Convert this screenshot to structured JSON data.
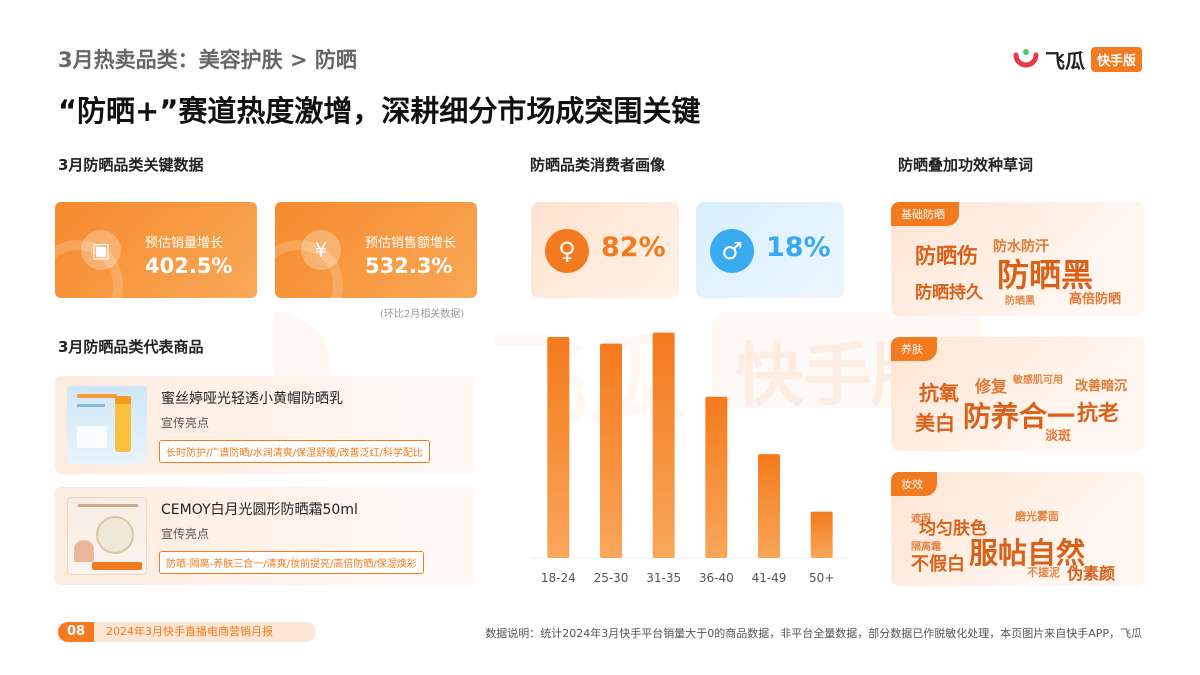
{
  "header": {
    "breadcrumb_part1": "3月热卖品类：美容护肤",
    "breadcrumb_sep": ">",
    "breadcrumb_part2": "防晒",
    "headline": "“防晒+”赛道热度激增，深耕细分市场成突围关键"
  },
  "logo": {
    "name": "飞瓜",
    "tag": "快手版"
  },
  "watermark": {
    "text1": "飞瓜",
    "text2": "快手版"
  },
  "key_data": {
    "title": "3月防晒品类关键数据",
    "cards": [
      {
        "label": "预估销量增长",
        "value": "402.5%",
        "icon": "box-icon"
      },
      {
        "label": "预估销售额增长",
        "value": "532.3%",
        "icon": "yen-coin-icon"
      }
    ],
    "note": "(环比2月相关数据)"
  },
  "products": {
    "title": "3月防晒品类代表商品",
    "items": [
      {
        "name": "蜜丝婷哑光轻透小黄帽防晒乳",
        "sub": "宣传亮点",
        "tags": "长时防护/广谱防晒/水润清爽/保湿舒缓/改善泛红/科学配比"
      },
      {
        "name": "CEMOY白月光圆形防晒霜50ml",
        "sub": "宣传亮点",
        "tags": "防晒-隔离-养肤三合一/清爽/妆前提亮/高倍防晒/保湿焕彩"
      }
    ]
  },
  "consumer": {
    "title": "防晒品类消费者画像",
    "female": {
      "icon": "female-icon",
      "value": "82%",
      "color": "#f47a1f"
    },
    "male": {
      "icon": "male-icon",
      "value": "18%",
      "color": "#3aaaf0"
    }
  },
  "chart_data": {
    "type": "bar",
    "categories": [
      "18-24",
      "25-30",
      "31-35",
      "36-40",
      "41-49",
      "50+"
    ],
    "values": [
      100,
      97,
      102,
      73,
      47,
      21
    ],
    "ylim": [
      0,
      105
    ],
    "grid": false,
    "bar_color": "#f68a2c"
  },
  "wordcloud": {
    "title": "防晒叠加功效种草词",
    "groups": [
      {
        "label": "基础防晒",
        "words": [
          "防晒伤",
          "防水防汗",
          "防晒持久",
          "防晒黑",
          "防晒黑",
          "高倍防晒"
        ]
      },
      {
        "label": "养肤",
        "words": [
          "抗氧",
          "修复",
          "敏感肌可用",
          "改善暗沉",
          "美白",
          "防养合一",
          "抗老",
          "淡斑"
        ]
      },
      {
        "label": "妆效",
        "words": [
          "遮瑕",
          "均匀肤色",
          "磨光雾面",
          "隔离霜",
          "不假白",
          "服帖自然",
          "不搓泥",
          "伪素颜"
        ]
      }
    ]
  },
  "footer": {
    "page": "08",
    "report": "2024年3月快手直播电商营销月报",
    "disclaimer": "数据说明：统计2024年3月快手平台销量大于0的商品数据，非平台全量数据，部分数据已作脱敏化处理，本页图片来自快手APP，飞瓜"
  }
}
